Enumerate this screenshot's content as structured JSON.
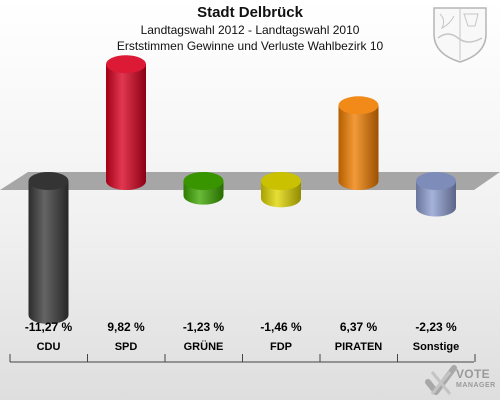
{
  "header": {
    "title": "Stadt Delbrück",
    "subtitle1": "Landtagswahl 2012 - Landtagswahl 2010",
    "subtitle2": "Erststimmen Gewinne und Verluste Wahlbezirk 10"
  },
  "logo": {
    "text": "VOTE",
    "subtext": "MANAGER"
  },
  "chart_data": {
    "type": "bar",
    "title": "Stadt Delbrück",
    "categories": [
      "CDU",
      "SPD",
      "GRÜNE",
      "FDP",
      "PIRATEN",
      "Sonstige"
    ],
    "values": [
      -11.27,
      9.82,
      -1.23,
      -1.46,
      6.37,
      -2.23
    ],
    "value_labels": [
      "-11,27 %",
      "9,82 %",
      "-1,23 %",
      "-1,46 %",
      "6,37 %",
      "-2,23 %"
    ],
    "colors": [
      "#3a3a3a",
      "#d8001e",
      "#3ea600",
      "#e0d600",
      "#f07d00",
      "#8c9ccf"
    ],
    "ylim": [
      -11.27,
      9.82
    ],
    "grid": false
  }
}
